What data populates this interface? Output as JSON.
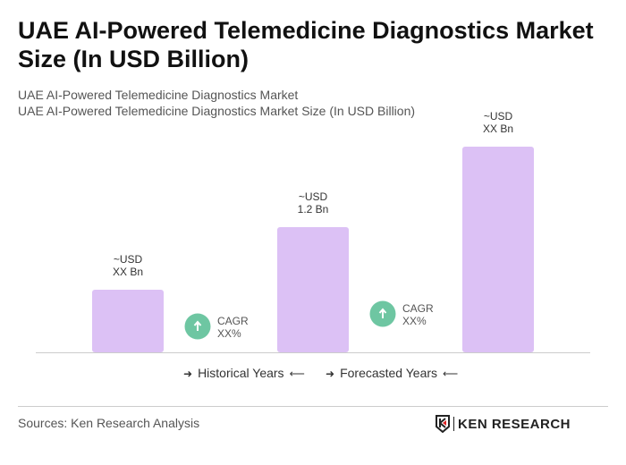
{
  "title": "UAE AI-Powered Telemedicine Diagnostics Market Size (In USD Billion)",
  "subtitle_1": "UAE AI-Powered Telemedicine Diagnostics Market",
  "subtitle_2": "UAE AI-Powered Telemedicine Diagnostics Market Size (In USD Billion)",
  "chart_data": {
    "type": "bar",
    "title": "UAE AI-Powered Telemedicine Diagnostics Market Size (In USD Billion)",
    "categories": [
      "",
      "",
      ""
    ],
    "values": [
      null,
      1.2,
      null
    ],
    "data_labels": [
      [
        "~USD",
        "XX Bn"
      ],
      [
        "~USD",
        "1.2 Bn"
      ],
      [
        "~USD",
        "XX Bn"
      ]
    ],
    "cagr_annotations": [
      [
        "CAGR",
        "XX%"
      ],
      [
        "CAGR",
        "XX%"
      ]
    ],
    "bar_color": "#dcc1f5",
    "cagr_color": "#6ec6a2",
    "grid": false,
    "legend": {
      "items": [
        "Historical Years",
        "Forecasted Years"
      ],
      "placement": "bottom"
    }
  },
  "footer": {
    "source": "Sources: Ken Research Analysis",
    "logo_text": "KEN RESEARCH"
  }
}
